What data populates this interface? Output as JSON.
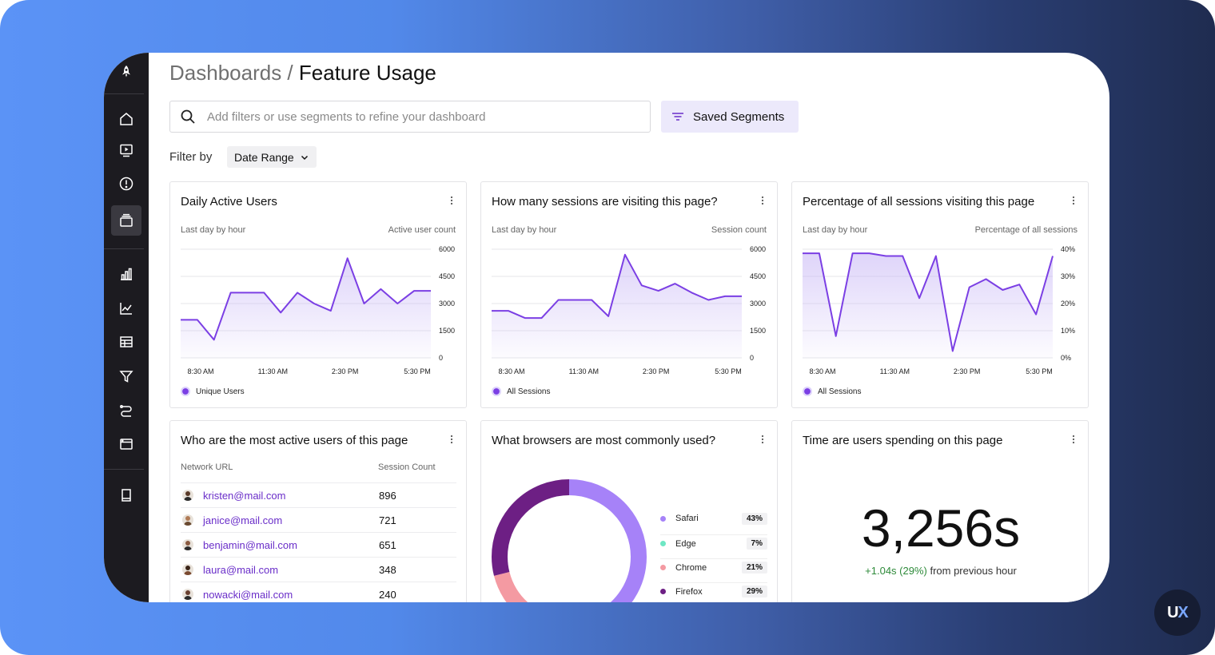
{
  "header": {
    "breadcrumb_parent": "Dashboards /",
    "page_title": "Feature Usage"
  },
  "search": {
    "placeholder": "Add filters or use segments to refine your dashboard"
  },
  "saved_segments_label": "Saved Segments",
  "filter": {
    "label": "Filter by",
    "date_range_label": "Date Range"
  },
  "sidebar": {
    "items": [
      {
        "name": "rocket-logo-icon",
        "active": false
      },
      {
        "name": "home-icon",
        "active": false
      },
      {
        "name": "session-replay-icon",
        "active": false
      },
      {
        "name": "alert-icon",
        "active": false
      },
      {
        "name": "dashboards-icon",
        "active": true
      },
      {
        "name": "bar-chart-icon",
        "active": false
      },
      {
        "name": "line-chart-icon",
        "active": false
      },
      {
        "name": "table-icon",
        "active": false
      },
      {
        "name": "funnel-icon",
        "active": false
      },
      {
        "name": "path-icon",
        "active": false
      },
      {
        "name": "browser-window-icon",
        "active": false
      },
      {
        "name": "book-icon",
        "active": false
      }
    ]
  },
  "cards": {
    "dau": {
      "title": "Daily Active Users",
      "sub_left": "Last day by hour",
      "sub_right": "Active user count",
      "legend": "Unique Users"
    },
    "sessions": {
      "title": "How many sessions are visiting this page?",
      "sub_left": "Last day by hour",
      "sub_right": "Session count",
      "legend": "All Sessions"
    },
    "pct": {
      "title": "Percentage of all sessions visiting this page",
      "sub_left": "Last day by hour",
      "sub_right": "Percentage of all sessions",
      "legend": "All Sessions"
    },
    "active_users": {
      "title": "Who are the most active users of this page",
      "col_url": "Network URL",
      "col_count": "Session Count",
      "rows": [
        {
          "email": "kristen@mail.com",
          "count": "896"
        },
        {
          "email": "janice@mail.com",
          "count": "721"
        },
        {
          "email": "benjamin@mail.com",
          "count": "651"
        },
        {
          "email": "laura@mail.com",
          "count": "348"
        },
        {
          "email": "nowacki@mail.com",
          "count": "240"
        }
      ]
    },
    "browsers": {
      "title": "What browsers are most commonly used?",
      "items": [
        {
          "name": "Safari",
          "pct": "43%",
          "value": 43,
          "color": "#a682f8"
        },
        {
          "name": "Edge",
          "pct": "7%",
          "value": 7,
          "color": "#6ee7c4"
        },
        {
          "name": "Chrome",
          "pct": "21%",
          "value": 21,
          "color": "#f49aa2"
        },
        {
          "name": "Firefox",
          "pct": "29%",
          "value": 29,
          "color": "#6d1f84"
        }
      ]
    },
    "time_on_page": {
      "title": "Time are users spending on this page",
      "value": "3,256s",
      "delta": "+1.04s (29%)",
      "delta_suffix": " from previous hour"
    }
  },
  "chart_data": [
    {
      "type": "line",
      "title": "Daily Active Users",
      "xlabel": "Last day by hour",
      "ylabel": "Active user count",
      "x_ticks": [
        "8:30 AM",
        "11:30 AM",
        "2:30 PM",
        "5:30 PM"
      ],
      "y_ticks": [
        "0",
        "1500",
        "3000",
        "4500",
        "6000"
      ],
      "ylim": [
        0,
        6000
      ],
      "series": [
        {
          "name": "Unique Users",
          "values": [
            2100,
            2100,
            1000,
            3600,
            3600,
            3600,
            2500,
            3600,
            3000,
            2600,
            5500,
            3000,
            3800,
            3000,
            3700,
            3700
          ]
        }
      ]
    },
    {
      "type": "line",
      "title": "How many sessions are visiting this page?",
      "xlabel": "Last day by hour",
      "ylabel": "Session count",
      "x_ticks": [
        "8:30 AM",
        "11:30 AM",
        "2:30 PM",
        "5:30 PM"
      ],
      "y_ticks": [
        "0",
        "1500",
        "3000",
        "4500",
        "6000"
      ],
      "ylim": [
        0,
        6000
      ],
      "series": [
        {
          "name": "All Sessions",
          "values": [
            2600,
            2600,
            2200,
            2200,
            3200,
            3200,
            3200,
            2300,
            5700,
            4000,
            3700,
            4100,
            3600,
            3200,
            3400,
            3400
          ]
        }
      ]
    },
    {
      "type": "line",
      "title": "Percentage of all sessions visiting this page",
      "xlabel": "Last day by hour",
      "ylabel": "Percentage of all sessions",
      "x_ticks": [
        "8:30 AM",
        "11:30 AM",
        "2:30 PM",
        "5:30 PM"
      ],
      "y_ticks": [
        "0%",
        "10%",
        "20%",
        "30%",
        "40%"
      ],
      "ylim": [
        0,
        40
      ],
      "series": [
        {
          "name": "All Sessions",
          "values": [
            38.5,
            38.5,
            8,
            38.5,
            38.5,
            37.5,
            37.5,
            22,
            37.5,
            2.5,
            26,
            29,
            25,
            27,
            16,
            37.5
          ]
        }
      ]
    },
    {
      "type": "pie",
      "title": "What browsers are most commonly used?",
      "categories": [
        "Safari",
        "Edge",
        "Chrome",
        "Firefox"
      ],
      "values": [
        43,
        7,
        21,
        29
      ]
    }
  ]
}
